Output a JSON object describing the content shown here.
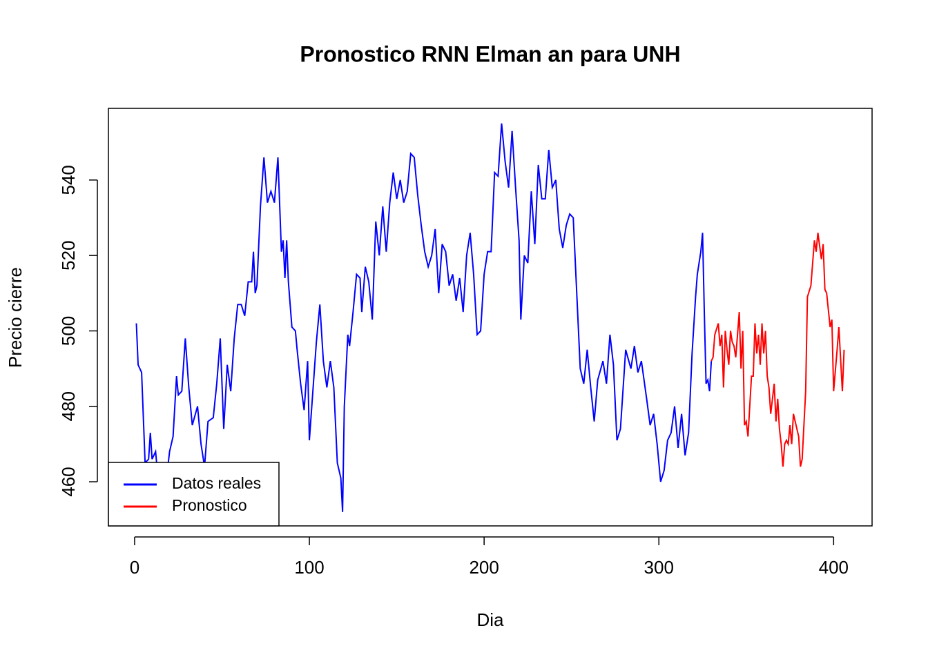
{
  "chart_data": {
    "type": "line",
    "title": "Pronostico RNN Elman an para  UNH",
    "x_label": "Dia",
    "y_label": "Precio cierre",
    "xlim": [
      -15,
      422
    ],
    "ylim": [
      448.3,
      559
    ],
    "xticks": [
      0,
      100,
      200,
      300,
      400
    ],
    "yticks": [
      460,
      480,
      500,
      520,
      540
    ],
    "legend": "bottom-left",
    "series": [
      {
        "name": "Datos reales",
        "color": "#0000ff",
        "x": [
          1,
          2,
          4,
          6,
          8,
          9,
          10,
          12,
          14,
          18,
          20,
          22,
          24,
          25,
          27,
          29,
          31,
          33,
          36,
          38,
          40,
          42,
          45,
          47,
          49,
          51,
          53,
          55,
          57,
          59,
          61,
          63,
          65,
          67,
          68,
          69,
          70,
          72,
          74,
          76,
          78,
          80,
          82,
          84,
          85,
          86,
          87,
          88,
          90,
          92,
          93,
          95,
          97,
          99,
          100,
          102,
          104,
          106,
          108,
          110,
          112,
          114,
          116,
          118,
          119,
          120,
          122,
          123,
          125,
          127,
          129,
          130,
          132,
          134,
          136,
          138,
          140,
          142,
          144,
          146,
          148,
          150,
          152,
          154,
          156,
          158,
          160,
          162,
          164,
          166,
          168,
          170,
          172,
          174,
          176,
          178,
          180,
          182,
          184,
          186,
          188,
          190,
          192,
          194,
          196,
          198,
          200,
          202,
          204,
          206,
          208,
          210,
          212,
          214,
          216,
          218,
          220,
          221,
          223,
          225,
          227,
          229,
          231,
          233,
          235,
          237,
          239,
          241,
          243,
          245,
          247,
          249,
          251,
          253,
          255,
          257,
          259,
          261,
          263,
          265,
          268,
          270,
          272,
          274,
          276,
          278,
          281,
          284,
          286,
          288,
          290,
          293,
          295,
          297,
          299,
          301,
          303,
          305,
          307,
          309,
          311,
          313,
          315,
          317,
          319,
          321,
          322,
          324,
          325,
          326,
          327,
          328,
          329,
          330
        ],
        "values": [
          502,
          491,
          489,
          465,
          466,
          473,
          466,
          468,
          458,
          460,
          468,
          472,
          488,
          483,
          484,
          498,
          485,
          475,
          480,
          470,
          464,
          476,
          477,
          486,
          498,
          474,
          491,
          484,
          498,
          507,
          507,
          504,
          513,
          513,
          521,
          510,
          512,
          533,
          546,
          534,
          537,
          534,
          546,
          521,
          524,
          514,
          524,
          513,
          501,
          500,
          495,
          486,
          479,
          492,
          471,
          484,
          497,
          507,
          492,
          485,
          492,
          485,
          465,
          461,
          452,
          480,
          499,
          496,
          505,
          515,
          514,
          505,
          517,
          513,
          503,
          529,
          520,
          533,
          521,
          534,
          542,
          535,
          540,
          534,
          537,
          547,
          546,
          536,
          528,
          521,
          517,
          520,
          527,
          510,
          523,
          521,
          512,
          515,
          508,
          514,
          505,
          520,
          526,
          515,
          499,
          500,
          515,
          521,
          521,
          542,
          541,
          555,
          545,
          538,
          553,
          538,
          524,
          503,
          520,
          518,
          537,
          523,
          544,
          535,
          535,
          548,
          538,
          540,
          527,
          522,
          528,
          531,
          530,
          510,
          490,
          486,
          495,
          485,
          476,
          487,
          492,
          486,
          499,
          491,
          471,
          474,
          495,
          490,
          496,
          489,
          492,
          482,
          475,
          478,
          470,
          460,
          463,
          471,
          473,
          480,
          469,
          478,
          467,
          473,
          494,
          509,
          515,
          521,
          526,
          505,
          486,
          487,
          484,
          492
        ]
      },
      {
        "name": "Pronostico",
        "color": "#ff0000",
        "x": [
          330,
          331,
          332,
          334,
          335,
          336,
          337,
          338,
          339,
          340,
          341,
          342,
          343,
          344,
          346,
          347,
          348,
          349,
          350,
          351,
          352,
          353,
          354,
          355,
          356,
          357,
          358,
          359,
          360,
          361,
          362,
          363,
          364,
          366,
          367,
          368,
          369,
          370,
          371,
          372,
          373,
          374,
          375,
          376,
          377,
          378,
          379,
          380,
          381,
          382,
          384,
          385,
          387,
          389,
          390,
          391,
          393,
          394,
          395,
          396,
          398,
          399,
          400,
          402,
          403,
          405,
          406
        ],
        "values": [
          492,
          493,
          499,
          502,
          496,
          499,
          485,
          500,
          495,
          491,
          500,
          497,
          496,
          493,
          505,
          490,
          500,
          475,
          476,
          472,
          480,
          488,
          488,
          502,
          494,
          499,
          491,
          502,
          494,
          500,
          488,
          485,
          478,
          486,
          476,
          482,
          474,
          470,
          464,
          470,
          471,
          470,
          475,
          470,
          478,
          476,
          474,
          472,
          464,
          466,
          484,
          509,
          512,
          524,
          521,
          526,
          519,
          523,
          511,
          510,
          501,
          503,
          484,
          495,
          501,
          484,
          495
        ]
      }
    ]
  }
}
